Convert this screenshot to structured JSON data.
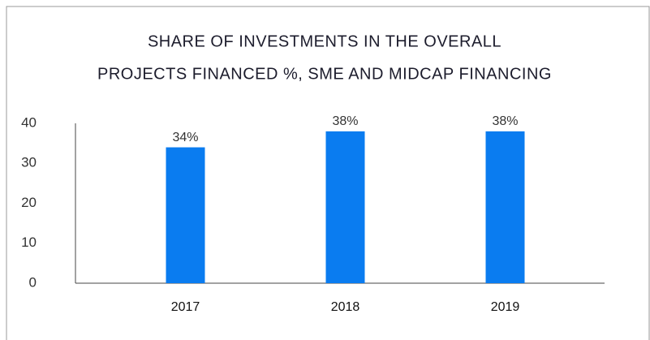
{
  "chart_data": {
    "type": "bar",
    "title": [
      "SHARE OF INVESTMENTS IN THE OVERALL",
      "PROJECTS FINANCED %, SME AND MIDCAP FINANCING"
    ],
    "categories": [
      "2017",
      "2018",
      "2019"
    ],
    "values": [
      34,
      38,
      38
    ],
    "value_labels": [
      "34%",
      "38%",
      "38%"
    ],
    "color": "#0a7cf0",
    "ylim": [
      0,
      40
    ],
    "yticks": [
      0,
      10,
      20,
      30,
      40
    ],
    "grid": false
  }
}
